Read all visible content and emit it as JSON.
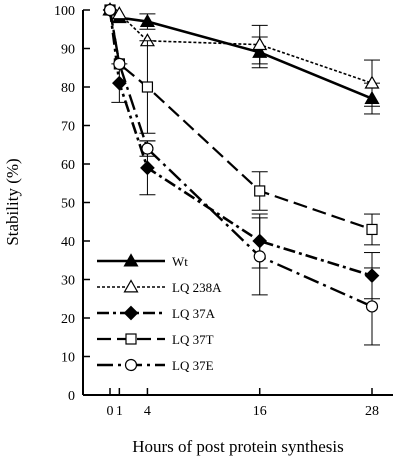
{
  "chart_data": {
    "type": "line",
    "title": "",
    "xlabel": "Hours of post protein synthesis",
    "ylabel": "Stability (%)",
    "xlim": [
      0,
      28
    ],
    "ylim": [
      0,
      100
    ],
    "x_ticks": [
      0,
      1,
      4,
      16,
      28
    ],
    "y_ticks": [
      0,
      10,
      20,
      30,
      40,
      50,
      60,
      70,
      80,
      90,
      100
    ],
    "grid": false,
    "legend_position": "bottom-left",
    "series": [
      {
        "name": "Wt",
        "marker": "filled-triangle",
        "line_style": "solid",
        "x": [
          0,
          1,
          4,
          16,
          28
        ],
        "y": [
          100,
          98,
          97,
          89,
          77
        ],
        "error": [
          0,
          0,
          2,
          4,
          4
        ]
      },
      {
        "name": "LQ 238A",
        "marker": "open-triangle",
        "line_style": "dotted",
        "x": [
          0,
          1,
          4,
          16,
          28
        ],
        "y": [
          100,
          99,
          92,
          91,
          81
        ],
        "error": [
          0,
          0,
          0,
          5,
          6
        ]
      },
      {
        "name": "LQ 37A",
        "marker": "filled-diamond",
        "line_style": "dash-dot",
        "x": [
          0,
          1,
          4,
          16,
          28
        ],
        "y": [
          100,
          81,
          59,
          40,
          31
        ],
        "error": [
          0,
          5,
          7,
          7,
          6
        ]
      },
      {
        "name": "LQ 37T",
        "marker": "open-square",
        "line_style": "long-dash",
        "x": [
          0,
          1,
          4,
          16,
          28
        ],
        "y": [
          100,
          86,
          80,
          53,
          43
        ],
        "error": [
          0,
          0,
          12,
          5,
          4
        ]
      },
      {
        "name": "LQ 37E",
        "marker": "open-circle",
        "line_style": "long-dash-dot",
        "x": [
          0,
          1,
          4,
          16,
          28
        ],
        "y": [
          100,
          86,
          64,
          36,
          23
        ],
        "error": [
          0,
          0,
          2,
          10,
          10
        ]
      }
    ]
  }
}
